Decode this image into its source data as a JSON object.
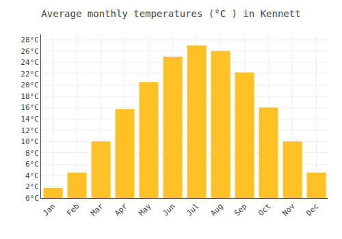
{
  "chart_data": {
    "type": "bar",
    "title": "Average monthly temperatures (°C ) in Kennett",
    "categories": [
      "Jan",
      "Feb",
      "Mar",
      "Apr",
      "May",
      "Jun",
      "Jul",
      "Aug",
      "Sep",
      "Oct",
      "Nov",
      "Dec"
    ],
    "values": [
      1.8,
      4.5,
      10.0,
      15.7,
      20.5,
      25.0,
      27.0,
      26.0,
      22.2,
      16.0,
      10.0,
      4.5
    ],
    "color": "#FFC125",
    "ylim": [
      0,
      29
    ],
    "yticks": [
      {
        "value": 0,
        "label": "0°C"
      },
      {
        "value": 2,
        "label": "2°C"
      },
      {
        "value": 4,
        "label": "4°C"
      },
      {
        "value": 6,
        "label": "6°C"
      },
      {
        "value": 8,
        "label": "8°C"
      },
      {
        "value": 10,
        "label": "10°C"
      },
      {
        "value": 12,
        "label": "12°C"
      },
      {
        "value": 14,
        "label": "14°C"
      },
      {
        "value": 16,
        "label": "16°C"
      },
      {
        "value": 18,
        "label": "18°C"
      },
      {
        "value": 20,
        "label": "20°C"
      },
      {
        "value": 22,
        "label": "22°C"
      },
      {
        "value": 24,
        "label": "24°C"
      },
      {
        "value": 26,
        "label": "26°C"
      },
      {
        "value": 28,
        "label": "28°C"
      }
    ],
    "grid": true
  }
}
